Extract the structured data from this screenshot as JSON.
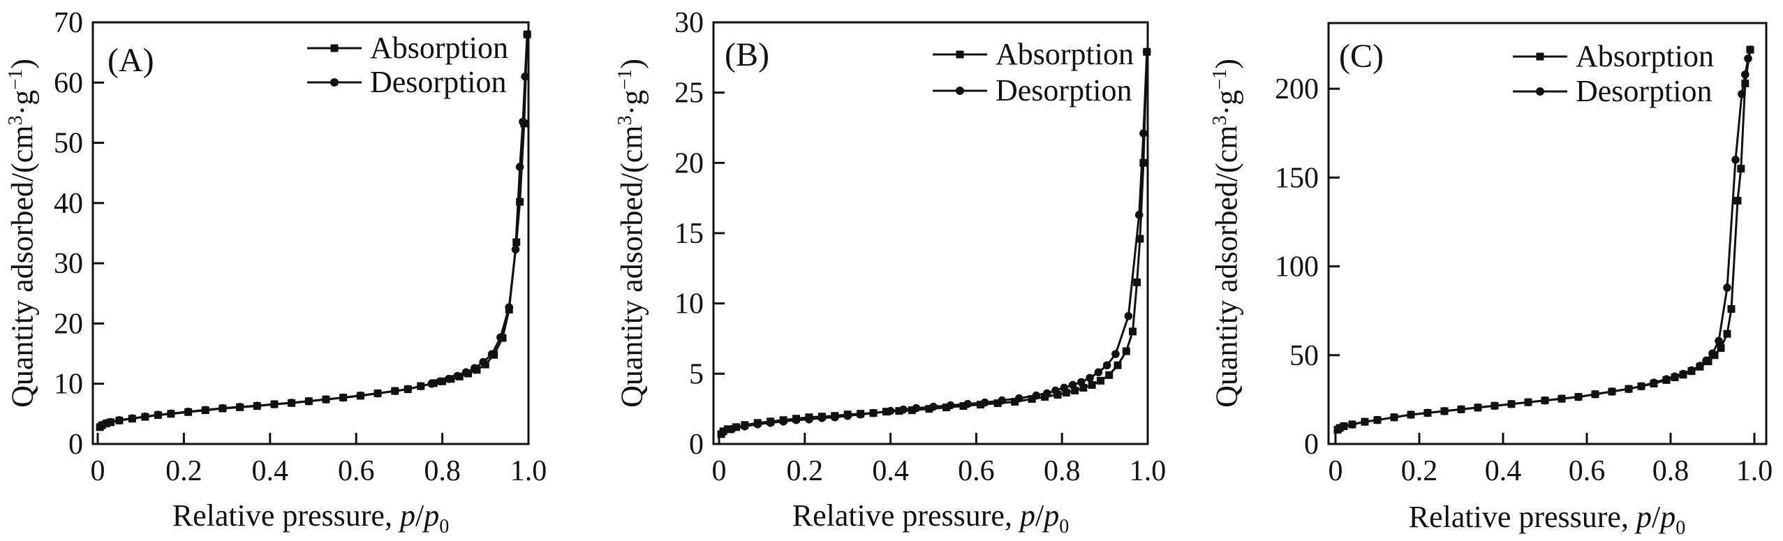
{
  "figure": {
    "description_colors": {
      "line": "#111111",
      "background": "#ffffff"
    }
  },
  "axis_titles": {
    "x": {
      "pre": "Relative pressure, ",
      "p1": "p",
      "slash": "/",
      "p2": "p",
      "sub": "0"
    },
    "y": {
      "pre": "Quantity adsorbed/(cm",
      "sup1": "3",
      "mid": "·g",
      "sup2": "−1",
      "post": ")"
    }
  },
  "chart_data": [
    {
      "type": "line",
      "panel_label": "(A)",
      "title": "",
      "xlabel": "Relative pressure, p/p₀",
      "ylabel": "Quantity adsorbed/(cm³·g⁻¹)",
      "xlim": [
        0,
        1.0
      ],
      "ylim": [
        0,
        70
      ],
      "y_top": 70,
      "grid": false,
      "legend_position": "top-right-inside",
      "x_ticks": [
        "0",
        "0.2",
        "0.4",
        "0.6",
        "0.8",
        "1.0"
      ],
      "x_tick_values": [
        0,
        0.2,
        0.4,
        0.6,
        0.8,
        1.0
      ],
      "y_ticks": [
        "0",
        "10",
        "20",
        "30",
        "40",
        "50",
        "60",
        "70"
      ],
      "y_tick_values": [
        0,
        10,
        20,
        30,
        40,
        50,
        60,
        70
      ],
      "legend": [
        {
          "label": "Absorption",
          "marker": "square"
        },
        {
          "label": "Desorption",
          "marker": "circle"
        }
      ],
      "series": [
        {
          "name": "Absorption",
          "marker": "square",
          "x": [
            0.005,
            0.01,
            0.02,
            0.03,
            0.05,
            0.08,
            0.11,
            0.14,
            0.17,
            0.21,
            0.25,
            0.29,
            0.33,
            0.37,
            0.41,
            0.45,
            0.49,
            0.53,
            0.57,
            0.61,
            0.65,
            0.69,
            0.72,
            0.75,
            0.78,
            0.8,
            0.82,
            0.84,
            0.86,
            0.88,
            0.9,
            0.92,
            0.94,
            0.955,
            0.972,
            0.98,
            0.99,
            0.997
          ],
          "y": [
            2.8,
            3.1,
            3.4,
            3.6,
            3.9,
            4.2,
            4.5,
            4.8,
            5.0,
            5.3,
            5.6,
            5.9,
            6.1,
            6.3,
            6.6,
            6.8,
            7.1,
            7.4,
            7.7,
            8.0,
            8.4,
            8.8,
            9.1,
            9.6,
            10.1,
            10.4,
            10.8,
            11.2,
            11.7,
            12.3,
            13.2,
            14.8,
            17.6,
            22.3,
            33.5,
            40.2,
            53.2,
            68.0
          ]
        },
        {
          "name": "Desorption",
          "marker": "circle",
          "x": [
            0.997,
            0.992,
            0.987,
            0.98,
            0.97,
            0.955,
            0.935,
            0.915,
            0.895,
            0.875,
            0.855,
            0.835,
            0.815,
            0.795,
            0.775,
            0.75,
            0.72,
            0.69,
            0.65,
            0.61,
            0.57,
            0.53,
            0.49,
            0.45,
            0.41,
            0.37,
            0.33,
            0.29,
            0.25,
            0.21,
            0.17,
            0.14,
            0.11,
            0.08,
            0.05,
            0.03,
            0.02,
            0.01
          ],
          "y": [
            68.0,
            61.0,
            53.5,
            46.0,
            32.3,
            22.7,
            17.7,
            14.9,
            13.6,
            12.6,
            11.9,
            11.3,
            10.8,
            10.4,
            10.0,
            9.6,
            9.1,
            8.8,
            8.4,
            8.05,
            7.7,
            7.4,
            7.1,
            6.85,
            6.6,
            6.35,
            6.15,
            5.95,
            5.65,
            5.35,
            5.05,
            4.85,
            4.55,
            4.25,
            3.95,
            3.65,
            3.45,
            3.15
          ]
        }
      ]
    },
    {
      "type": "line",
      "panel_label": "(B)",
      "title": "",
      "xlabel": "Relative pressure, p/p₀",
      "ylabel": "Quantity adsorbed/(cm³·g⁻¹)",
      "xlim": [
        0,
        1.0
      ],
      "ylim": [
        0,
        30
      ],
      "y_top": 30,
      "grid": false,
      "legend_position": "top-right-inside",
      "x_ticks": [
        "0",
        "0.2",
        "0.4",
        "0.6",
        "0.8",
        "1.0"
      ],
      "x_tick_values": [
        0,
        0.2,
        0.4,
        0.6,
        0.8,
        1.0
      ],
      "y_ticks": [
        "0",
        "5",
        "10",
        "15",
        "20",
        "25",
        "30"
      ],
      "y_tick_values": [
        0,
        5,
        10,
        15,
        20,
        25,
        30
      ],
      "legend": [
        {
          "label": "Absorption",
          "marker": "square"
        },
        {
          "label": "Desorption",
          "marker": "circle"
        }
      ],
      "series": [
        {
          "name": "Absorption",
          "marker": "square",
          "x": [
            0.005,
            0.01,
            0.02,
            0.04,
            0.06,
            0.09,
            0.12,
            0.15,
            0.18,
            0.21,
            0.24,
            0.27,
            0.3,
            0.33,
            0.36,
            0.39,
            0.42,
            0.45,
            0.49,
            0.53,
            0.57,
            0.61,
            0.65,
            0.69,
            0.73,
            0.76,
            0.79,
            0.81,
            0.83,
            0.85,
            0.87,
            0.89,
            0.91,
            0.93,
            0.95,
            0.965,
            0.975,
            0.982,
            0.99,
            0.998
          ],
          "y": [
            0.7,
            0.9,
            1.05,
            1.2,
            1.35,
            1.5,
            1.6,
            1.7,
            1.8,
            1.9,
            1.95,
            2.0,
            2.1,
            2.15,
            2.2,
            2.3,
            2.35,
            2.4,
            2.5,
            2.6,
            2.7,
            2.8,
            2.9,
            3.0,
            3.2,
            3.35,
            3.5,
            3.65,
            3.8,
            4.0,
            4.2,
            4.5,
            4.9,
            5.6,
            6.6,
            8.0,
            11.5,
            14.6,
            20.0,
            27.9
          ]
        },
        {
          "name": "Desorption",
          "marker": "circle",
          "x": [
            0.998,
            0.99,
            0.98,
            0.955,
            0.925,
            0.905,
            0.885,
            0.865,
            0.845,
            0.825,
            0.805,
            0.785,
            0.765,
            0.74,
            0.7,
            0.66,
            0.62,
            0.58,
            0.54,
            0.5,
            0.46,
            0.43,
            0.4,
            0.36,
            0.33,
            0.3,
            0.27,
            0.24,
            0.21,
            0.18,
            0.15,
            0.12,
            0.09,
            0.06,
            0.03,
            0.01
          ],
          "y": [
            27.9,
            22.1,
            16.3,
            9.1,
            6.4,
            5.6,
            5.1,
            4.7,
            4.4,
            4.2,
            4.0,
            3.8,
            3.6,
            3.45,
            3.25,
            3.1,
            2.95,
            2.85,
            2.75,
            2.65,
            2.55,
            2.45,
            2.35,
            2.2,
            2.1,
            2.0,
            1.9,
            1.85,
            1.75,
            1.7,
            1.6,
            1.5,
            1.4,
            1.25,
            1.05,
            0.85
          ]
        }
      ]
    },
    {
      "type": "line",
      "panel_label": "(C)",
      "title": "",
      "xlabel": "Relative pressure, p/p₀",
      "ylabel": "Quantity adsorbed/(cm³·g⁻¹)",
      "xlim": [
        0,
        1.0
      ],
      "ylim": [
        0,
        237
      ],
      "y_top": 237,
      "grid": false,
      "legend_position": "top-right-inside",
      "x_ticks": [
        "0",
        "0.2",
        "0.4",
        "0.6",
        "0.8",
        "1.0"
      ],
      "x_tick_values": [
        0,
        0.2,
        0.4,
        0.6,
        0.8,
        1.0
      ],
      "y_ticks": [
        "0",
        "50",
        "100",
        "150",
        "200"
      ],
      "y_tick_values": [
        0,
        50,
        100,
        150,
        200
      ],
      "legend": [
        {
          "label": "Absorption",
          "marker": "square"
        },
        {
          "label": "Desorption",
          "marker": "circle"
        }
      ],
      "series": [
        {
          "name": "Absorption",
          "marker": "square",
          "x": [
            0.005,
            0.01,
            0.02,
            0.04,
            0.07,
            0.1,
            0.14,
            0.18,
            0.22,
            0.26,
            0.3,
            0.34,
            0.38,
            0.42,
            0.46,
            0.5,
            0.54,
            0.58,
            0.62,
            0.66,
            0.7,
            0.73,
            0.76,
            0.79,
            0.81,
            0.83,
            0.85,
            0.87,
            0.89,
            0.905,
            0.92,
            0.935,
            0.945,
            0.96,
            0.968,
            0.978,
            0.99
          ],
          "y": [
            8,
            9,
            10,
            11,
            12.5,
            13.5,
            15,
            16.5,
            17.5,
            18.5,
            19.5,
            20.5,
            21.5,
            22.5,
            23.5,
            24.5,
            25.5,
            26.5,
            28,
            29.5,
            31,
            32.5,
            34,
            36,
            37.5,
            39,
            41,
            43.5,
            46.5,
            50,
            54,
            62,
            76,
            137,
            155,
            203,
            222
          ]
        },
        {
          "name": "Desorption",
          "marker": "circle",
          "x": [
            0.99,
            0.985,
            0.978,
            0.97,
            0.955,
            0.935,
            0.915,
            0.9,
            0.885,
            0.87,
            0.85,
            0.83,
            0.81,
            0.79,
            0.76,
            0.73,
            0.7,
            0.66,
            0.62,
            0.58,
            0.54,
            0.5,
            0.46,
            0.42,
            0.38,
            0.34,
            0.3,
            0.26,
            0.22,
            0.18,
            0.14,
            0.1,
            0.07,
            0.04,
            0.02,
            0.01
          ],
          "y": [
            222,
            217,
            208,
            197,
            160,
            88,
            58,
            51,
            47,
            44,
            41.5,
            39.5,
            38,
            36.5,
            34.5,
            32.5,
            31,
            29.5,
            28,
            26.5,
            25.5,
            24.5,
            23.5,
            22.5,
            21.5,
            20.5,
            19.5,
            18.5,
            17.5,
            16.5,
            15,
            13.5,
            12.5,
            11,
            10,
            9
          ]
        }
      ]
    }
  ]
}
